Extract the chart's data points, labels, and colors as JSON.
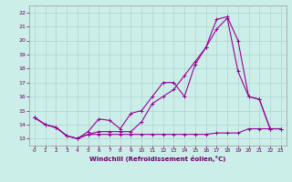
{
  "xlabel": "Windchill (Refroidissement éolien,°C)",
  "background_color": "#cceee8",
  "grid_color": "#aacccc",
  "line_color": "#990099",
  "xlim": [
    -0.5,
    23.5
  ],
  "ylim": [
    12.5,
    22.5
  ],
  "yticks": [
    13,
    14,
    15,
    16,
    17,
    18,
    19,
    20,
    21,
    22
  ],
  "xticks": [
    0,
    1,
    2,
    3,
    4,
    5,
    6,
    7,
    8,
    9,
    10,
    11,
    12,
    13,
    14,
    15,
    16,
    17,
    18,
    19,
    20,
    21,
    22,
    23
  ],
  "line1_x": [
    0,
    1,
    2,
    3,
    4,
    5,
    6,
    7,
    8,
    9,
    10,
    11,
    12,
    13,
    14,
    15,
    16,
    17,
    18,
    19,
    20,
    21,
    22,
    23
  ],
  "line1_y": [
    14.5,
    14.0,
    13.8,
    13.2,
    13.0,
    13.3,
    13.3,
    13.3,
    13.3,
    13.3,
    13.3,
    13.3,
    13.3,
    13.3,
    13.3,
    13.3,
    13.3,
    13.4,
    13.4,
    13.4,
    13.7,
    13.7,
    13.7,
    13.7
  ],
  "line2_x": [
    0,
    1,
    2,
    3,
    4,
    5,
    6,
    7,
    8,
    9,
    10,
    11,
    12,
    13,
    14,
    15,
    16,
    17,
    18,
    19,
    20,
    21,
    22,
    23
  ],
  "line2_y": [
    14.5,
    14.0,
    13.8,
    13.2,
    13.0,
    13.5,
    14.4,
    14.3,
    13.7,
    14.8,
    15.0,
    16.0,
    17.0,
    17.0,
    16.0,
    18.3,
    19.5,
    20.8,
    21.6,
    17.8,
    16.0,
    15.8,
    13.7,
    13.7
  ],
  "line3_x": [
    0,
    1,
    2,
    3,
    4,
    5,
    6,
    7,
    8,
    9,
    10,
    11,
    12,
    13,
    14,
    15,
    16,
    17,
    18,
    19,
    20,
    21,
    22,
    23
  ],
  "line3_y": [
    14.5,
    14.0,
    13.8,
    13.2,
    13.0,
    13.3,
    13.5,
    13.5,
    13.5,
    13.5,
    14.2,
    15.5,
    16.0,
    16.5,
    17.5,
    18.5,
    19.5,
    21.5,
    21.7,
    20.0,
    16.0,
    15.8,
    13.7,
    13.7
  ]
}
